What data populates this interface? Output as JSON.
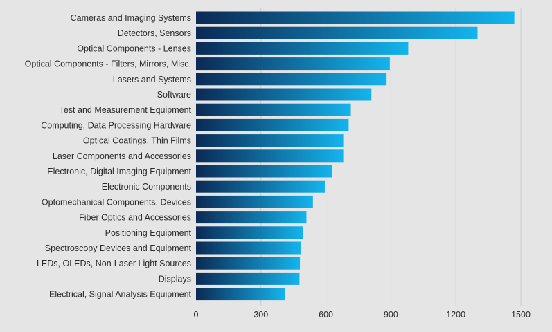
{
  "colors": {
    "background": "#e5e5e6",
    "bar_start": "#0b2a55",
    "bar_end": "#14b4ec",
    "grid": "#c9cacc",
    "text": "#2b2b2b"
  },
  "chart_data": {
    "type": "bar",
    "orientation": "horizontal",
    "title": "",
    "xlabel": "",
    "ylabel": "",
    "xlim": [
      0,
      1500
    ],
    "xticks": [
      0,
      300,
      600,
      900,
      1200,
      1500
    ],
    "grid": "vertical",
    "legend": "none",
    "categories": [
      "Cameras and Imaging Systems",
      "Detectors, Sensors",
      "Optical Components - Lenses",
      "Optical Components - Filters, Mirrors, Misc.",
      "Lasers and Systems",
      "Software",
      "Test and Measurement Equipment",
      "Computing, Data Processing Hardware",
      "Optical Coatings, Thin Films",
      "Laser Components and Accessories",
      "Electronic, Digital Imaging Equipment",
      "Electronic Components",
      "Optomechanical Components, Devices",
      "Fiber Optics and Accessories",
      "Positioning Equipment",
      "Spectroscopy Devices and Equipment",
      "LEDs, OLEDs, Non-Laser Light Sources",
      "Displays",
      "Electrical, Signal Analysis Equipment"
    ],
    "values": [
      1470,
      1300,
      980,
      895,
      880,
      810,
      715,
      705,
      680,
      680,
      630,
      595,
      540,
      510,
      495,
      485,
      480,
      478,
      410
    ]
  }
}
